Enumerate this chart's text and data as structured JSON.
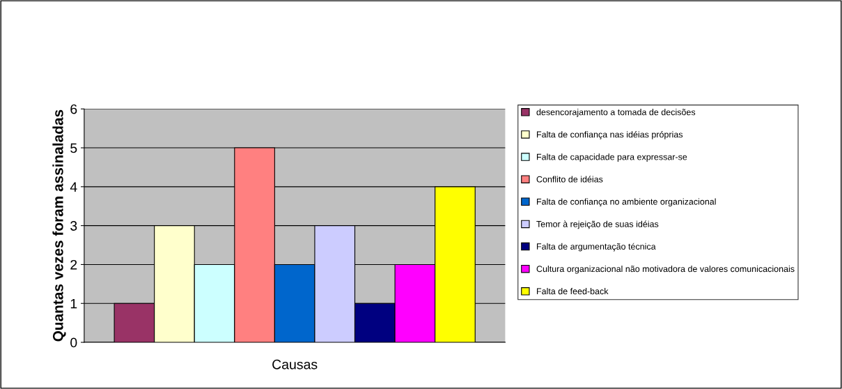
{
  "chart_data": {
    "type": "bar",
    "xlabel": "Causas",
    "ylabel": "Quantas vezes foram assinaladas",
    "categories": [
      null
    ],
    "series": [
      {
        "name": "desencorajamento a tomada de decisões",
        "color": "#993366",
        "values": [
          1
        ]
      },
      {
        "name": "Falta de confiança nas idéias próprias",
        "color": "#ffffcc",
        "values": [
          3
        ]
      },
      {
        "name": "Falta de capacidade para expressar-se",
        "color": "#ccffff",
        "values": [
          2
        ]
      },
      {
        "name": "Conflito de idéias",
        "color": "#ff8080",
        "values": [
          5
        ]
      },
      {
        "name": "Falta de confiança no ambiente organizacional",
        "color": "#0066cc",
        "values": [
          2
        ]
      },
      {
        "name": "Temor à rejeição de suas idéias",
        "color": "#ccccff",
        "values": [
          3
        ]
      },
      {
        "name": "Falta de argumentação técnica",
        "color": "#000080",
        "values": [
          1
        ]
      },
      {
        "name": "Cultura organizacional não motivadora de valores comunicacionais",
        "color": "#ff00ff",
        "values": [
          2
        ]
      },
      {
        "name": "Falta de feed-back",
        "color": "#ffff00",
        "values": [
          4
        ]
      }
    ],
    "ylim": [
      0,
      6
    ],
    "yticks": [
      0,
      1,
      2,
      3,
      4,
      5,
      6
    ],
    "grid": "y",
    "legend": "right"
  }
}
